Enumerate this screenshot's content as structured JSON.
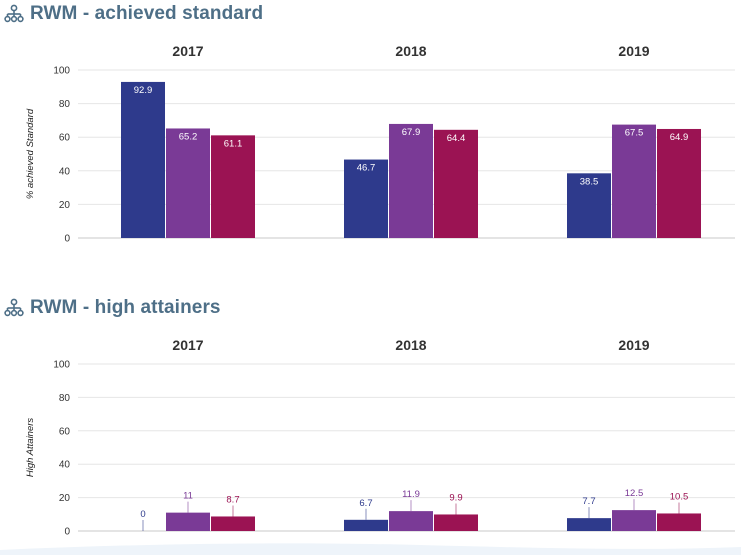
{
  "sections": [
    {
      "title": "RWM - achieved standard",
      "icon": "sitemap-icon",
      "ylabel": "% achieved Standard"
    },
    {
      "title": "RWM - high attainers",
      "icon": "sitemap-icon",
      "ylabel": "High Attainers"
    }
  ],
  "colors": {
    "title": "#4e6f87",
    "series": [
      "#2e3a8c",
      "#7a3a96",
      "#9b1353"
    ]
  },
  "chart_data": [
    {
      "type": "bar",
      "groups": [
        "2017",
        "2018",
        "2019"
      ],
      "series": [
        {
          "values": [
            92.9,
            46.7,
            38.5
          ]
        },
        {
          "values": [
            65.2,
            67.9,
            67.5
          ]
        },
        {
          "values": [
            61.1,
            64.4,
            64.9
          ]
        }
      ],
      "ylabel": "% achieved Standard",
      "ylim": [
        0,
        100
      ],
      "yticks": [
        0,
        20,
        40,
        60,
        80,
        100
      ],
      "grid": true,
      "labels_inside": true
    },
    {
      "type": "bar",
      "groups": [
        "2017",
        "2018",
        "2019"
      ],
      "series": [
        {
          "values": [
            0,
            6.7,
            7.7
          ]
        },
        {
          "values": [
            11,
            11.9,
            12.5
          ]
        },
        {
          "values": [
            8.7,
            9.9,
            10.5
          ]
        }
      ],
      "ylabel": "High Attainers",
      "ylim": [
        0,
        100
      ],
      "yticks": [
        0,
        20,
        40,
        60,
        80,
        100
      ],
      "grid": true,
      "labels_inside": false
    }
  ]
}
